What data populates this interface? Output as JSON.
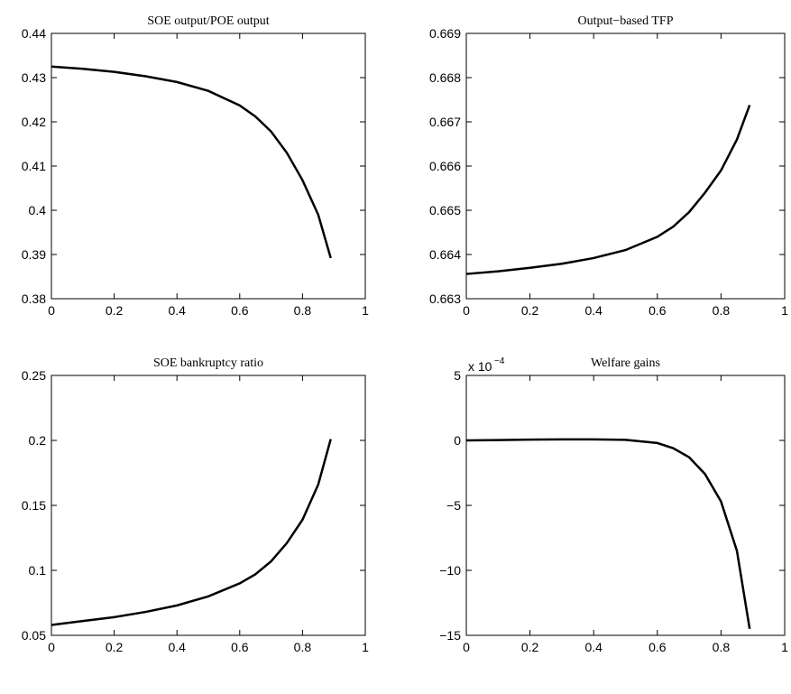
{
  "chart_data": [
    {
      "type": "line",
      "title": "SOE output/POE output",
      "x": [
        0,
        0.1,
        0.2,
        0.3,
        0.4,
        0.5,
        0.6,
        0.65,
        0.7,
        0.75,
        0.8,
        0.85,
        0.89
      ],
      "series": [
        {
          "color": "#000000",
          "values": [
            0.4325,
            0.432,
            0.4313,
            0.4303,
            0.429,
            0.427,
            0.4237,
            0.4212,
            0.4178,
            0.413,
            0.4068,
            0.399,
            0.3892
          ]
        }
      ],
      "xlim": [
        0,
        1
      ],
      "xticks": [
        0,
        0.2,
        0.4,
        0.6,
        0.8,
        1
      ],
      "ylim": [
        0.38,
        0.44
      ],
      "yticks": [
        0.38,
        0.39,
        0.4,
        0.41,
        0.42,
        0.43,
        0.44
      ]
    },
    {
      "type": "line",
      "title": "Output−based TFP",
      "x": [
        0,
        0.1,
        0.2,
        0.3,
        0.4,
        0.5,
        0.6,
        0.65,
        0.7,
        0.75,
        0.8,
        0.85,
        0.89
      ],
      "series": [
        {
          "color": "#000000",
          "values": [
            0.66356,
            0.66362,
            0.6637,
            0.66379,
            0.66392,
            0.6641,
            0.6644,
            0.66463,
            0.66496,
            0.6654,
            0.6659,
            0.6666,
            0.66738
          ]
        }
      ],
      "xlim": [
        0,
        1
      ],
      "xticks": [
        0,
        0.2,
        0.4,
        0.6,
        0.8,
        1
      ],
      "ylim": [
        0.663,
        0.669
      ],
      "yticks": [
        0.663,
        0.664,
        0.665,
        0.666,
        0.667,
        0.668,
        0.669
      ]
    },
    {
      "type": "line",
      "title": "SOE bankruptcy ratio",
      "x": [
        0,
        0.1,
        0.2,
        0.3,
        0.4,
        0.5,
        0.6,
        0.65,
        0.7,
        0.75,
        0.8,
        0.85,
        0.89
      ],
      "series": [
        {
          "color": "#000000",
          "values": [
            0.058,
            0.061,
            0.064,
            0.068,
            0.073,
            0.08,
            0.09,
            0.097,
            0.107,
            0.121,
            0.139,
            0.166,
            0.201
          ]
        }
      ],
      "xlim": [
        0,
        1
      ],
      "xticks": [
        0,
        0.2,
        0.4,
        0.6,
        0.8,
        1
      ],
      "ylim": [
        0.05,
        0.25
      ],
      "yticks": [
        0.05,
        0.1,
        0.15,
        0.2,
        0.25
      ]
    },
    {
      "type": "line",
      "title": "Welfare gains",
      "y_multiplier": {
        "base": "x 10",
        "exponent": "−4"
      },
      "x": [
        0,
        0.1,
        0.2,
        0.3,
        0.4,
        0.5,
        0.6,
        0.65,
        0.7,
        0.75,
        0.8,
        0.85,
        0.89
      ],
      "series": [
        {
          "color": "#000000",
          "values": [
            0,
            0.03,
            0.06,
            0.08,
            0.08,
            0.04,
            -0.2,
            -0.6,
            -1.3,
            -2.6,
            -4.7,
            -8.5,
            -14.5
          ]
        }
      ],
      "xlim": [
        0,
        1
      ],
      "xticks": [
        0,
        0.2,
        0.4,
        0.6,
        0.8,
        1
      ],
      "ylim": [
        -15,
        5
      ],
      "yticks": [
        {
          "value": -15,
          "label": "−15"
        },
        {
          "value": -10,
          "label": "−10"
        },
        {
          "value": -5,
          "label": "−5"
        },
        0,
        5
      ]
    }
  ]
}
